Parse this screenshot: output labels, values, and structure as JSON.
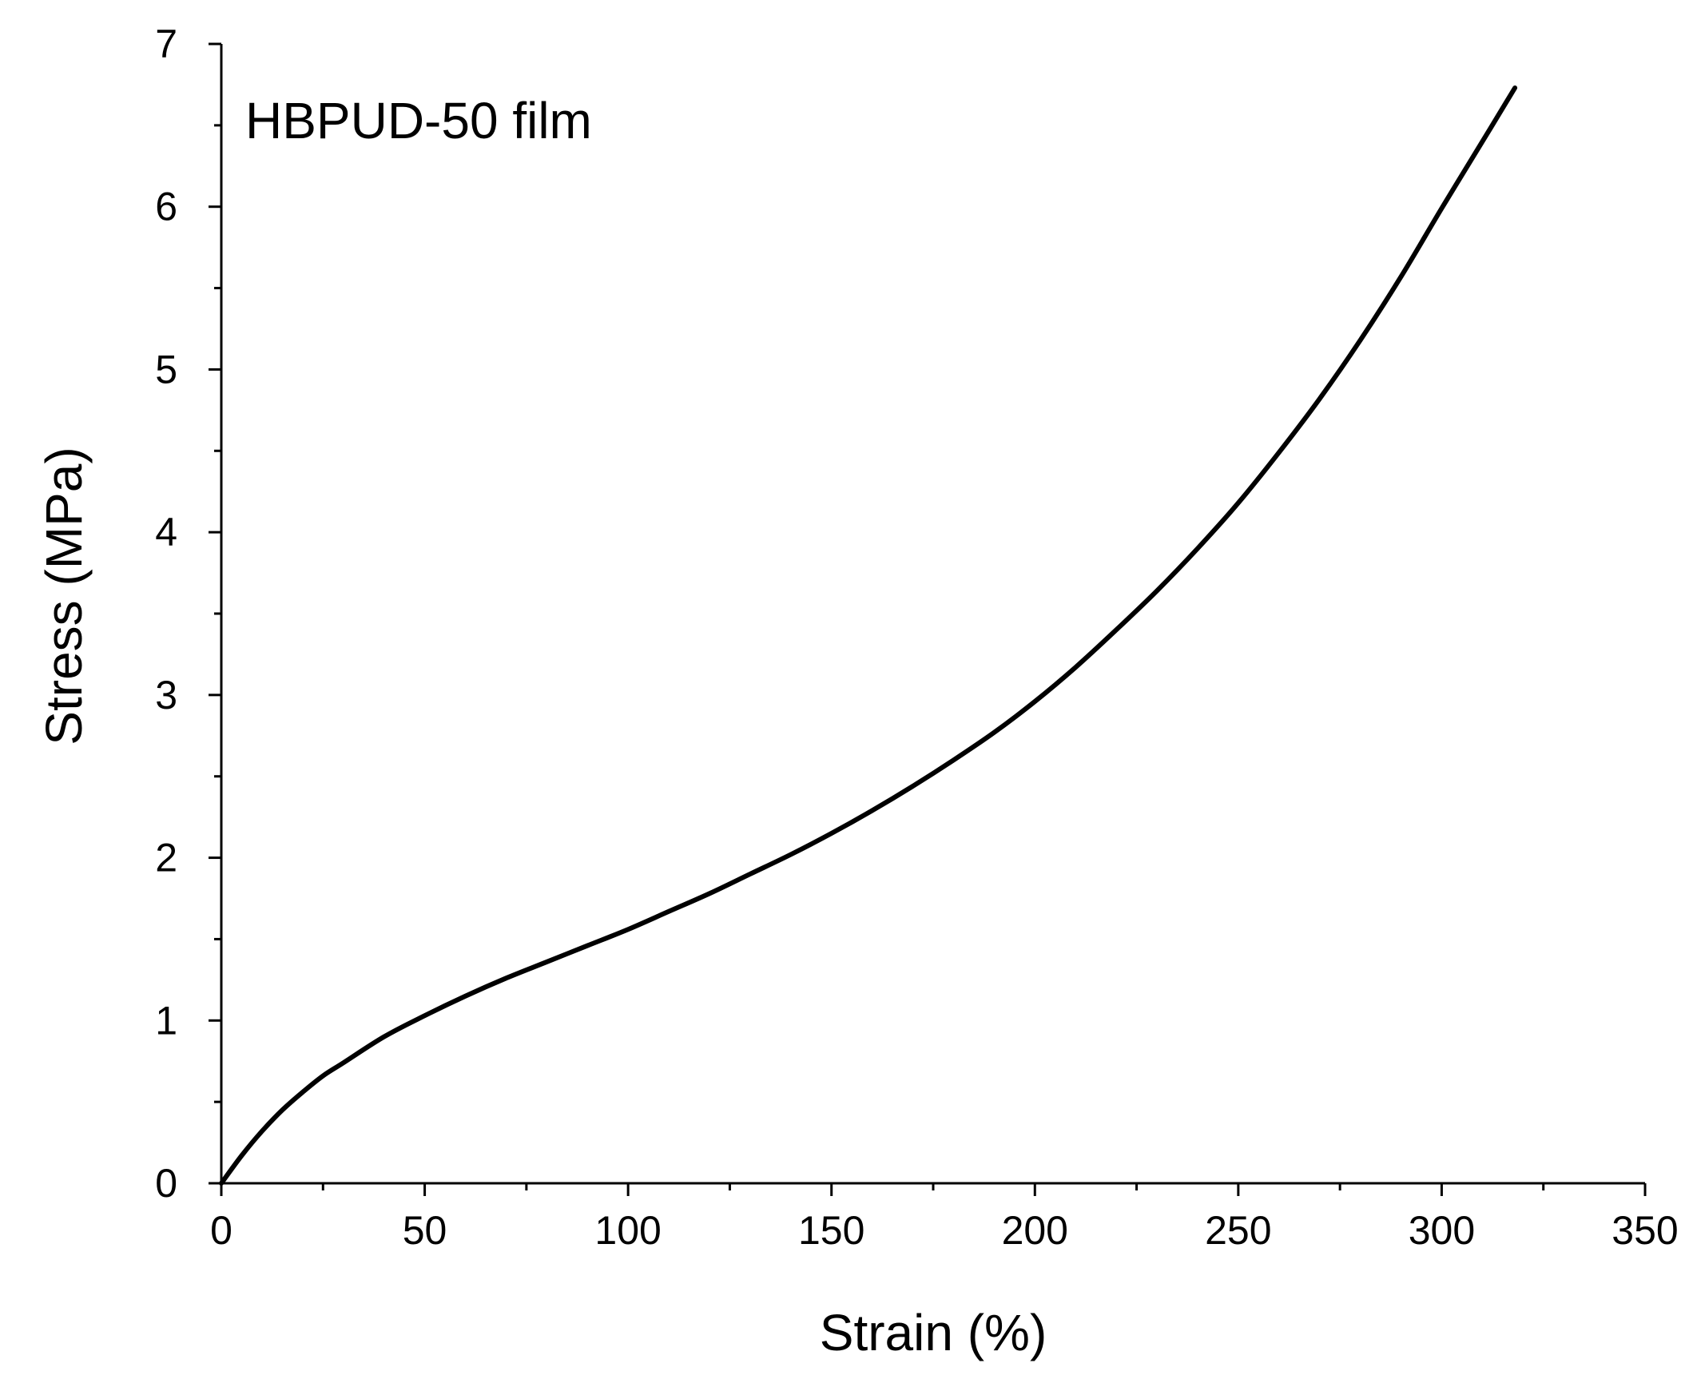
{
  "chart_data": {
    "type": "line",
    "title": "",
    "annotation": "HBPUD-50 film",
    "xlabel": "Strain (%)",
    "ylabel": "Stress (MPa)",
    "xlim": [
      0,
      350
    ],
    "ylim": [
      0,
      7
    ],
    "x_ticks": [
      0,
      50,
      100,
      150,
      200,
      250,
      300,
      350
    ],
    "x_tick_labels": [
      "0",
      "50",
      "100",
      "150",
      "200",
      "250",
      "300",
      "350"
    ],
    "y_ticks": [
      0,
      1,
      2,
      3,
      4,
      5,
      6,
      7
    ],
    "y_tick_labels": [
      "0",
      "1",
      "2",
      "3",
      "4",
      "5",
      "6",
      "7"
    ],
    "x_minor_step": 25,
    "y_minor_step": 0.5,
    "grid": false,
    "legend": "none",
    "series": [
      {
        "color": "#000000",
        "x": [
          0,
          5,
          10,
          15,
          20,
          25,
          30,
          40,
          50,
          60,
          70,
          80,
          90,
          100,
          110,
          120,
          130,
          140,
          150,
          160,
          170,
          180,
          190,
          200,
          210,
          220,
          230,
          240,
          250,
          260,
          270,
          280,
          290,
          300,
          310,
          318
        ],
        "y": [
          0,
          0.17,
          0.32,
          0.45,
          0.56,
          0.66,
          0.74,
          0.9,
          1.03,
          1.15,
          1.26,
          1.36,
          1.46,
          1.56,
          1.67,
          1.78,
          1.9,
          2.02,
          2.15,
          2.29,
          2.44,
          2.6,
          2.77,
          2.96,
          3.17,
          3.4,
          3.64,
          3.9,
          4.18,
          4.49,
          4.82,
          5.18,
          5.57,
          5.99,
          6.4,
          6.73
        ]
      }
    ]
  }
}
